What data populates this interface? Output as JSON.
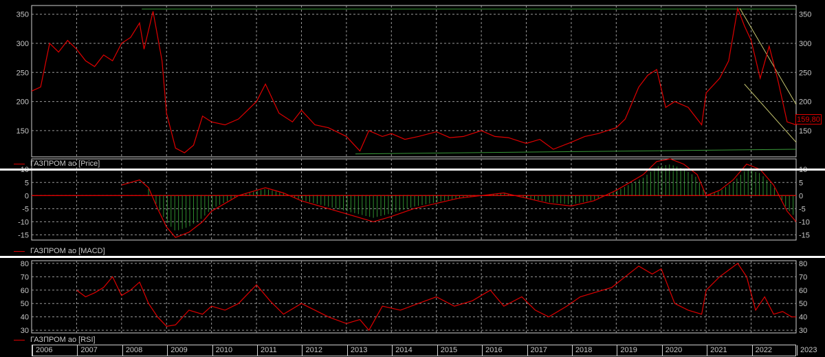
{
  "colors": {
    "background": "#000000",
    "price": "#e00000",
    "trend": "#c8c870",
    "support": "#3a9a3a",
    "grid": "#9a9a9a",
    "histogram": "#2f8f2f",
    "axis_text": "#c8c8c8"
  },
  "panels": {
    "price_legend": "ГАЗПРОМ ао [Price]",
    "macd_legend": "ГАЗПРОМ ао [MACD]",
    "rsi_legend": "ГАЗПРОМ ао [RSI]",
    "last_price": "159,80"
  },
  "chart_data": [
    {
      "type": "line",
      "title": "",
      "legend": "ГАЗПРОМ ао [Price]",
      "ylim": [
        105,
        365
      ],
      "yticks": [
        "150",
        "200",
        "250",
        "300",
        "350"
      ],
      "xticks": [
        "2006",
        "2007",
        "2008",
        "2009",
        "2010",
        "2011",
        "2012",
        "2013",
        "2014",
        "2015",
        "2016",
        "2017",
        "2018",
        "2019",
        "2020",
        "2021",
        "2022",
        "2023"
      ],
      "series": [
        {
          "name": "ГАЗПРОМ ао [Price]",
          "x": [
            2006.0,
            2006.2,
            2006.4,
            2006.6,
            2006.8,
            2007.0,
            2007.2,
            2007.4,
            2007.6,
            2007.8,
            2008.0,
            2008.2,
            2008.4,
            2008.5,
            2008.7,
            2008.9,
            2009.0,
            2009.2,
            2009.4,
            2009.6,
            2009.8,
            2010.0,
            2010.3,
            2010.6,
            2011.0,
            2011.2,
            2011.5,
            2011.8,
            2012.0,
            2012.3,
            2012.6,
            2013.0,
            2013.3,
            2013.5,
            2013.8,
            2014.0,
            2014.3,
            2014.6,
            2015.0,
            2015.3,
            2015.6,
            2016.0,
            2016.3,
            2016.6,
            2017.0,
            2017.3,
            2017.6,
            2018.0,
            2018.3,
            2018.6,
            2019.0,
            2019.2,
            2019.5,
            2019.7,
            2019.9,
            2020.1,
            2020.3,
            2020.6,
            2020.9,
            2021.0,
            2021.3,
            2021.5,
            2021.7,
            2021.85,
            2022.0,
            2022.2,
            2022.4,
            2022.6,
            2022.8,
            2023.0
          ],
          "y": [
            218,
            225,
            300,
            285,
            305,
            290,
            270,
            260,
            280,
            270,
            300,
            310,
            335,
            290,
            355,
            270,
            180,
            120,
            112,
            125,
            175,
            165,
            160,
            170,
            200,
            230,
            180,
            165,
            185,
            160,
            155,
            140,
            115,
            150,
            140,
            145,
            135,
            140,
            148,
            138,
            140,
            150,
            140,
            138,
            128,
            135,
            118,
            130,
            140,
            145,
            155,
            170,
            225,
            245,
            255,
            190,
            200,
            190,
            160,
            215,
            240,
            270,
            360,
            330,
            305,
            240,
            295,
            235,
            165,
            159.8
          ]
        }
      ],
      "annotations": [
        "trendlines"
      ]
    },
    {
      "type": "line",
      "title": "",
      "legend": "ГАЗПРОМ ао [MACD]",
      "ylim": [
        -17,
        14
      ],
      "yticks": [
        "10",
        "5",
        "0",
        "-5",
        "-10",
        "-15"
      ],
      "series": [
        {
          "name": "ГАЗПРОМ ао [MACD]",
          "x": [
            2008.0,
            2008.2,
            2008.4,
            2008.6,
            2008.8,
            2009.0,
            2009.2,
            2009.5,
            2009.8,
            2010.0,
            2010.3,
            2010.6,
            2011.0,
            2011.2,
            2011.6,
            2012.0,
            2012.4,
            2012.8,
            2013.2,
            2013.6,
            2014.0,
            2014.5,
            2015.0,
            2015.5,
            2016.0,
            2016.5,
            2017.0,
            2017.5,
            2018.0,
            2018.5,
            2019.0,
            2019.3,
            2019.6,
            2019.9,
            2020.2,
            2020.5,
            2020.8,
            2021.0,
            2021.3,
            2021.6,
            2021.9,
            2022.2,
            2022.5,
            2022.8,
            2023.0
          ],
          "y": [
            4,
            5,
            6,
            3,
            -5,
            -12,
            -16,
            -14,
            -10,
            -6,
            -3,
            0,
            2,
            3,
            1,
            -2,
            -4,
            -6,
            -8,
            -10,
            -8,
            -5,
            -3,
            -1,
            0,
            1,
            -1,
            -3,
            -4,
            -2,
            2,
            5,
            8,
            13,
            14,
            12,
            8,
            0,
            2,
            6,
            12,
            10,
            4,
            -6,
            -10
          ]
        }
      ]
    },
    {
      "type": "line",
      "title": "",
      "legend": "ГАЗПРОМ ао [RSI]",
      "ylim": [
        28,
        82
      ],
      "yticks": [
        "80",
        "70",
        "60",
        "50",
        "40",
        "30"
      ],
      "series": [
        {
          "name": "ГАЗПРОМ ао [RSI]",
          "x": [
            2007.0,
            2007.2,
            2007.4,
            2007.6,
            2007.8,
            2008.0,
            2008.2,
            2008.4,
            2008.6,
            2008.8,
            2009.0,
            2009.2,
            2009.5,
            2009.8,
            2010.0,
            2010.3,
            2010.6,
            2011.0,
            2011.3,
            2011.6,
            2012.0,
            2012.3,
            2012.6,
            2013.0,
            2013.3,
            2013.5,
            2013.8,
            2014.2,
            2014.6,
            2015.0,
            2015.4,
            2015.8,
            2016.2,
            2016.5,
            2016.9,
            2017.2,
            2017.5,
            2017.9,
            2018.2,
            2018.5,
            2018.9,
            2019.2,
            2019.5,
            2019.8,
            2020.0,
            2020.3,
            2020.6,
            2020.9,
            2021.0,
            2021.3,
            2021.5,
            2021.7,
            2021.9,
            2022.1,
            2022.3,
            2022.5,
            2022.7,
            2022.9,
            2023.0
          ],
          "y": [
            60,
            55,
            58,
            62,
            70,
            56,
            60,
            66,
            50,
            40,
            33,
            34,
            45,
            42,
            48,
            45,
            50,
            64,
            52,
            42,
            50,
            45,
            40,
            35,
            38,
            30,
            48,
            45,
            50,
            55,
            48,
            52,
            60,
            48,
            55,
            45,
            40,
            48,
            55,
            58,
            62,
            70,
            78,
            72,
            76,
            50,
            45,
            42,
            60,
            70,
            75,
            80,
            70,
            45,
            55,
            42,
            44,
            40,
            40
          ]
        }
      ]
    }
  ]
}
